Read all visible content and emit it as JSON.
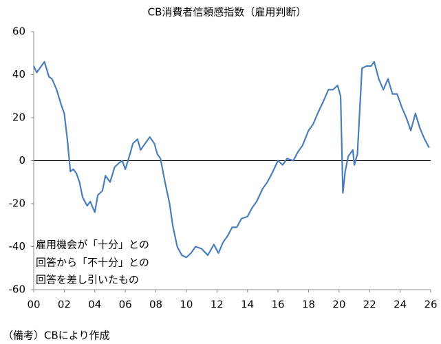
{
  "chart_data": {
    "type": "line",
    "title": "CB消費者信頼感指数（雇用判断）",
    "annotation": [
      "雇用機会が「十分」との",
      "回答から「不十分」との",
      "回答を差し引いたもの"
    ],
    "note": "（備考）CBにより作成",
    "x": [
      2000.0,
      2000.2,
      2000.4,
      2000.7,
      2001.0,
      2001.2,
      2001.5,
      2001.8,
      2002.0,
      2002.2,
      2002.4,
      2002.6,
      2002.8,
      2003.0,
      2003.2,
      2003.5,
      2003.7,
      2004.0,
      2004.2,
      2004.5,
      2004.7,
      2005.0,
      2005.3,
      2005.6,
      2005.8,
      2006.0,
      2006.3,
      2006.5,
      2006.8,
      2007.0,
      2007.3,
      2007.6,
      2007.9,
      2008.1,
      2008.3,
      2008.6,
      2008.9,
      2009.1,
      2009.4,
      2009.7,
      2010.0,
      2010.3,
      2010.6,
      2011.0,
      2011.4,
      2011.8,
      2012.1,
      2012.4,
      2012.7,
      2013.0,
      2013.3,
      2013.6,
      2014.0,
      2014.3,
      2014.6,
      2015.0,
      2015.3,
      2015.6,
      2016.0,
      2016.3,
      2016.6,
      2017.0,
      2017.3,
      2017.6,
      2018.0,
      2018.3,
      2018.6,
      2019.0,
      2019.3,
      2019.6,
      2019.9,
      2020.1,
      2020.25,
      2020.4,
      2020.6,
      2020.9,
      2021.0,
      2021.2,
      2021.5,
      2021.8,
      2022.1,
      2022.3,
      2022.6,
      2022.9,
      2023.2,
      2023.5,
      2023.8,
      2024.1,
      2024.4,
      2024.7,
      2025.0,
      2025.3,
      2025.6,
      2025.9
    ],
    "series": [
      {
        "color": "#4a7ebb",
        "values": [
          44,
          41,
          43,
          46,
          39,
          38,
          33,
          26,
          22,
          10,
          -5,
          -4,
          -6,
          -10,
          -17,
          -21,
          -19,
          -24,
          -16,
          -14,
          -7,
          -10,
          -3,
          -1,
          0,
          -4,
          3,
          8,
          10,
          5,
          8,
          11,
          8,
          3,
          1,
          -10,
          -20,
          -30,
          -40,
          -44,
          -45,
          -43,
          -40,
          -41,
          -44,
          -39,
          -43,
          -38,
          -35,
          -31,
          -31,
          -27,
          -26,
          -22,
          -19,
          -13,
          -10,
          -6,
          0,
          -2,
          1,
          0,
          4,
          7,
          14,
          17,
          22,
          28,
          33,
          33,
          35,
          30,
          -15,
          -5,
          2,
          5,
          -2,
          3,
          43,
          44,
          44,
          46,
          38,
          33,
          38,
          31,
          31,
          25,
          20,
          14,
          22,
          15,
          10,
          6
        ]
      }
    ],
    "xlim": [
      2000,
      2026
    ],
    "xticks": [
      {
        "value": 2000,
        "label": "00"
      },
      {
        "value": 2002,
        "label": "02"
      },
      {
        "value": 2004,
        "label": "04"
      },
      {
        "value": 2006,
        "label": "06"
      },
      {
        "value": 2008,
        "label": "08"
      },
      {
        "value": 2010,
        "label": "10"
      },
      {
        "value": 2012,
        "label": "12"
      },
      {
        "value": 2014,
        "label": "14"
      },
      {
        "value": 2016,
        "label": "16"
      },
      {
        "value": 2018,
        "label": "18"
      },
      {
        "value": 2020,
        "label": "20"
      },
      {
        "value": 2022,
        "label": "22"
      },
      {
        "value": 2024,
        "label": "24"
      },
      {
        "value": 2026,
        "label": "26"
      }
    ],
    "ylim": [
      -60,
      60
    ],
    "yticks": [
      60,
      40,
      20,
      0,
      -20,
      -40,
      -60
    ],
    "grid": false
  }
}
